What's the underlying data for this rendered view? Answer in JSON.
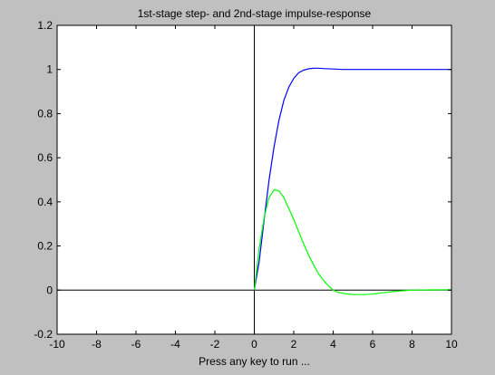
{
  "figure": {
    "background_color": "#c0c0c0",
    "axes_background_color": "#ffffff"
  },
  "chart_data": {
    "type": "line",
    "title": "1st-stage step- and 2nd-stage impulse-response",
    "xlabel": "Press any key to run ...",
    "ylabel": "",
    "xlim": [
      -10,
      10
    ],
    "ylim": [
      -0.2,
      1.2
    ],
    "x_ticks": [
      -10,
      -8,
      -6,
      -4,
      -2,
      0,
      2,
      4,
      6,
      8,
      10
    ],
    "x_tick_labels": [
      "-10",
      "-8",
      "-6",
      "-4",
      "-2",
      "0",
      "2",
      "4",
      "6",
      "8",
      "10"
    ],
    "y_ticks": [
      -0.2,
      0,
      0.2,
      0.4,
      0.6,
      0.8,
      1,
      1.2
    ],
    "y_tick_labels": [
      "-0.2",
      "0",
      "0.2",
      "0.4",
      "0.6",
      "0.8",
      "1",
      "1.2"
    ],
    "grid": false,
    "reference_lines": {
      "x_zero_line": true,
      "y_zero_line": true,
      "color": "#000000"
    },
    "series": [
      {
        "color": "#0000ff",
        "x": [
          0,
          0.25,
          0.5,
          0.75,
          1.0,
          1.25,
          1.5,
          1.75,
          2.0,
          2.25,
          2.5,
          2.75,
          3.0,
          3.25,
          3.5,
          4.0,
          4.5,
          5.0,
          6.0,
          7.0,
          8.0,
          10.0
        ],
        "y": [
          0,
          0.13,
          0.32,
          0.5,
          0.65,
          0.77,
          0.86,
          0.92,
          0.96,
          0.985,
          0.997,
          1.003,
          1.006,
          1.006,
          1.004,
          1.002,
          1.0,
          1.0,
          1.0,
          1.0,
          1.0,
          1.0
        ]
      },
      {
        "color": "#00ff00",
        "x": [
          0,
          0.25,
          0.5,
          0.75,
          1.0,
          1.25,
          1.5,
          1.75,
          2.0,
          2.25,
          2.5,
          2.75,
          3.0,
          3.25,
          3.5,
          3.75,
          4.0,
          4.25,
          4.5,
          5.0,
          5.5,
          6.0,
          6.5,
          7.0,
          7.5,
          8.0,
          9.0,
          10.0
        ],
        "y": [
          0,
          0.19,
          0.33,
          0.42,
          0.455,
          0.45,
          0.42,
          0.37,
          0.32,
          0.265,
          0.21,
          0.16,
          0.115,
          0.075,
          0.045,
          0.02,
          0.0,
          -0.01,
          -0.015,
          -0.02,
          -0.02,
          -0.018,
          -0.012,
          -0.007,
          -0.003,
          0.0,
          0.001,
          0.002
        ]
      }
    ]
  }
}
